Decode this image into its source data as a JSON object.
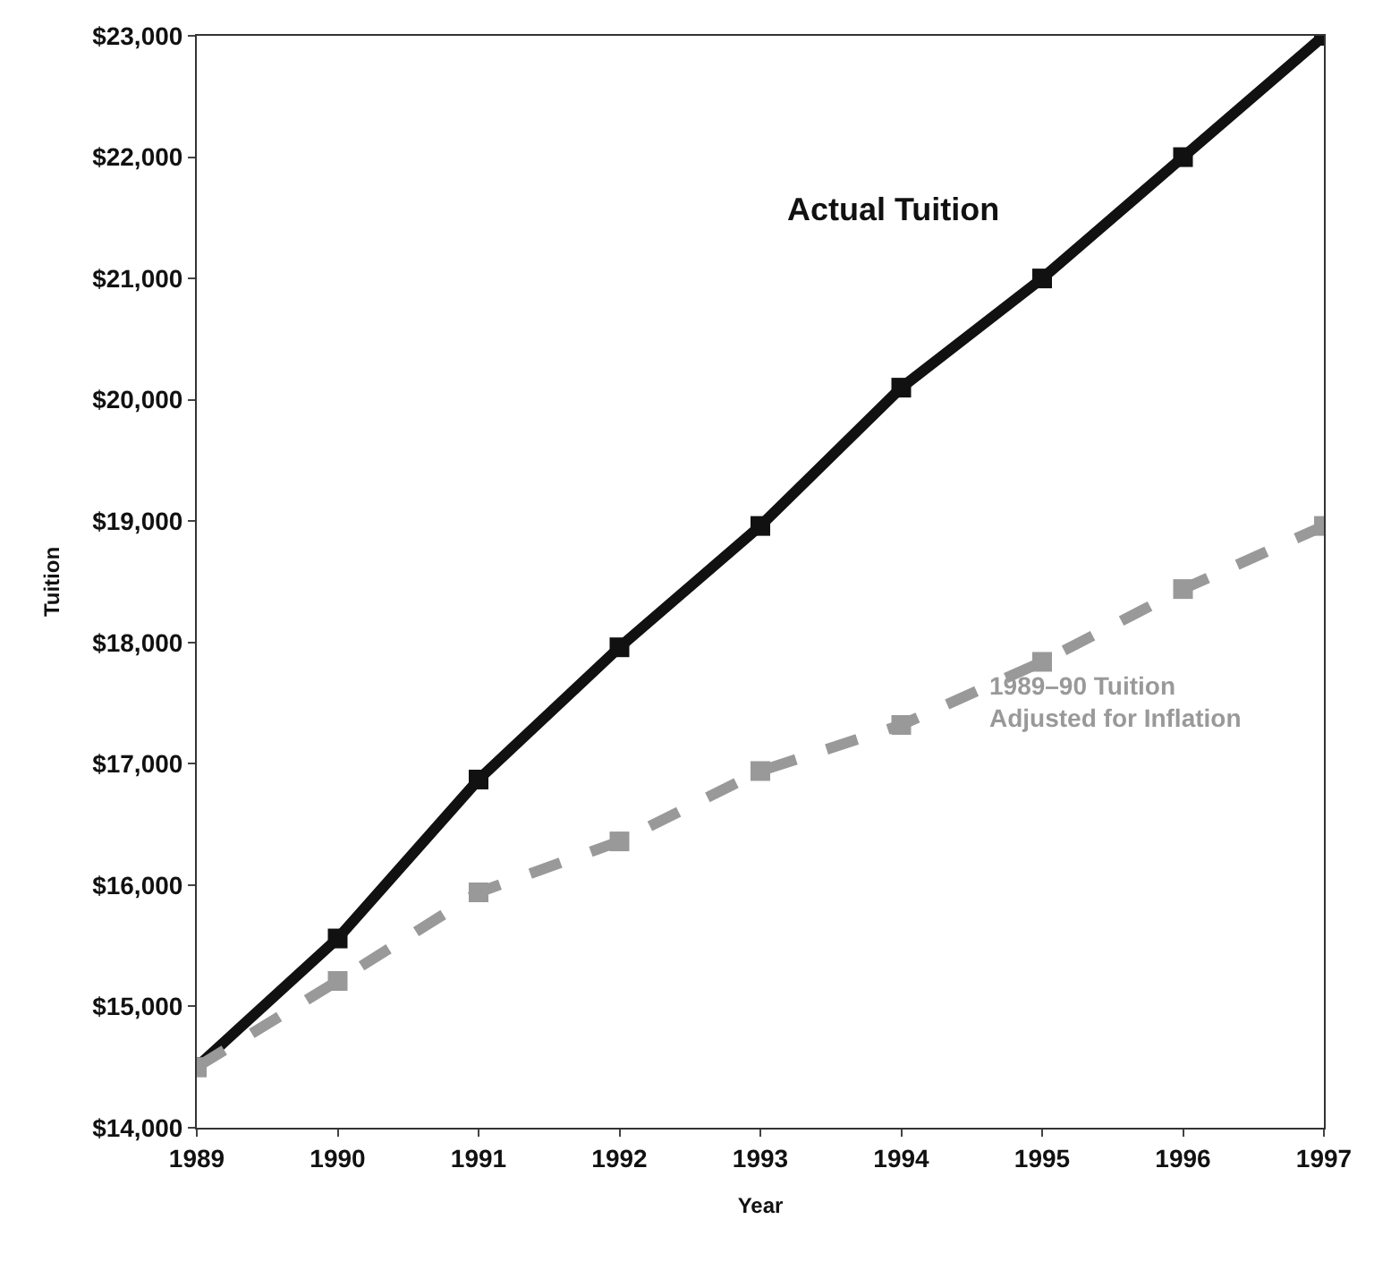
{
  "chart_data": {
    "type": "line",
    "xlabel": "Year",
    "ylabel": "Tuition",
    "x": [
      1989,
      1990,
      1991,
      1992,
      1993,
      1994,
      1995,
      1996,
      1997
    ],
    "xlim": [
      1989,
      1997
    ],
    "xticks": [
      1989,
      1990,
      1991,
      1992,
      1993,
      1994,
      1995,
      1996,
      1997
    ],
    "ylim": [
      14000,
      23000
    ],
    "yticks": [
      {
        "value": 14000,
        "label": "$14,000"
      },
      {
        "value": 15000,
        "label": "$15,000"
      },
      {
        "value": 16000,
        "label": "$16,000"
      },
      {
        "value": 17000,
        "label": "$17,000"
      },
      {
        "value": 18000,
        "label": "$18,000"
      },
      {
        "value": 19000,
        "label": "$19,000"
      },
      {
        "value": 20000,
        "label": "$20,000"
      },
      {
        "value": 21000,
        "label": "$21,000"
      },
      {
        "value": 22000,
        "label": "$22,000"
      },
      {
        "value": 23000,
        "label": "$23,000"
      }
    ],
    "legend": false,
    "marker": "square",
    "series": [
      {
        "name": "Actual Tuition",
        "color": "#111111",
        "line_style": "solid",
        "values": [
          14500,
          15560,
          16870,
          17960,
          18960,
          20100,
          21000,
          22000,
          23000
        ]
      },
      {
        "name": "1989–90 Tuition\nAdjusted for Inflation",
        "color": "#999999",
        "line_style": "dashed",
        "values": [
          14500,
          15210,
          15940,
          16360,
          16940,
          17320,
          17840,
          18440,
          18960
        ]
      }
    ]
  }
}
